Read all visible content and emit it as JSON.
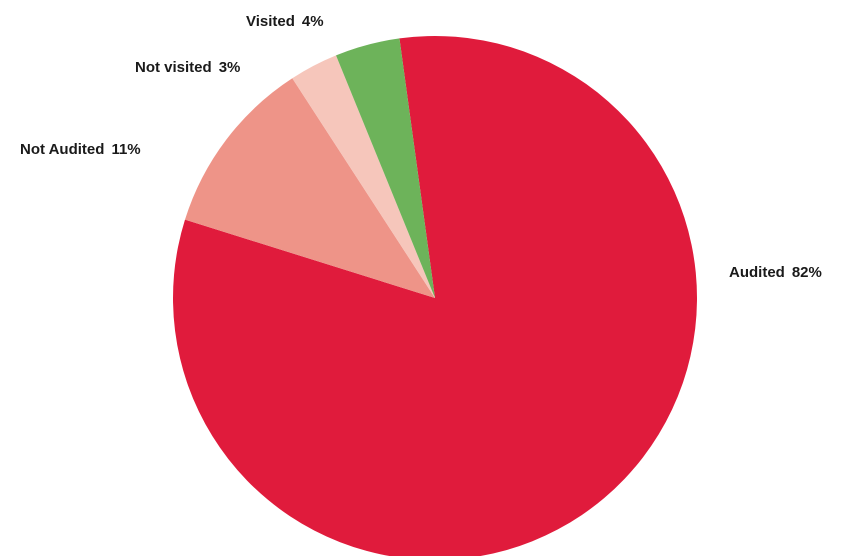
{
  "chart_data": {
    "type": "pie",
    "slices": [
      {
        "label": "Audited",
        "value": 82,
        "display": "82%",
        "color": "#e01b3c"
      },
      {
        "label": "Not Audited",
        "value": 11,
        "display": "11%",
        "color": "#ee9488"
      },
      {
        "label": "Not visited",
        "value": 3,
        "display": "3%",
        "color": "#f6c6bb"
      },
      {
        "label": "Visited",
        "value": 4,
        "display": "4%",
        "color": "#6db35a"
      }
    ],
    "start_angle_deg": -7.8,
    "direction": "clockwise"
  }
}
